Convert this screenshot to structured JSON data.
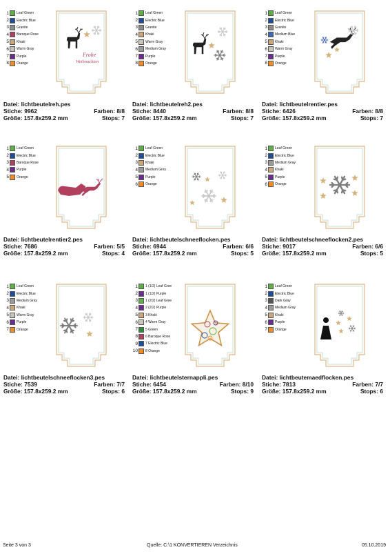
{
  "labels": {
    "datei": "Datei:",
    "stiche": "Stiche:",
    "farben": "Farben:",
    "groesse": "Größe:",
    "stops": "Stops:"
  },
  "designs": [
    {
      "file": "lichtbeutelreh.pes",
      "stiche": "9962",
      "farben": "8/8",
      "groesse": "157.8x259.2 mm",
      "stops": "7",
      "motif": "reh",
      "colors": [
        {
          "n": "1",
          "name": "Leaf Green",
          "hex": "#5fae47"
        },
        {
          "n": "2",
          "name": "Electric Blue",
          "hex": "#1f4d9a"
        },
        {
          "n": "3",
          "name": "Granite",
          "hex": "#8a8a8a"
        },
        {
          "n": "4",
          "name": "Baroque Rose",
          "hex": "#b0405e"
        },
        {
          "n": "5",
          "name": "Khaki",
          "hex": "#c9a77a"
        },
        {
          "n": "6",
          "name": "Warm Gray",
          "hex": "#c8c3bb"
        },
        {
          "n": "7",
          "name": "Purple",
          "hex": "#6a2c8f"
        },
        {
          "n": "8",
          "name": "Orange",
          "hex": "#f08c28"
        }
      ]
    },
    {
      "file": "lichtbeutelreh2.pes",
      "stiche": "8440",
      "farben": "8/8",
      "groesse": "157.8x259.2 mm",
      "stops": "7",
      "motif": "reh2",
      "colors": [
        {
          "n": "1",
          "name": "Leaf Green",
          "hex": "#5fae47"
        },
        {
          "n": "2",
          "name": "Electric Blue",
          "hex": "#1f4d9a"
        },
        {
          "n": "3",
          "name": "Granite",
          "hex": "#8a8a8a"
        },
        {
          "n": "4",
          "name": "Khaki",
          "hex": "#c9a77a"
        },
        {
          "n": "5",
          "name": "Warm Gray",
          "hex": "#c8c3bb"
        },
        {
          "n": "6",
          "name": "Medium Gray",
          "hex": "#9a9a9a"
        },
        {
          "n": "7",
          "name": "Purple",
          "hex": "#6a2c8f"
        },
        {
          "n": "8",
          "name": "Orange",
          "hex": "#f08c28"
        }
      ]
    },
    {
      "file": "lichtbeutelrentier.pes",
      "stiche": "6426",
      "farben": "8/8",
      "groesse": "157.8x259.2 mm",
      "stops": "7",
      "motif": "rentier",
      "colors": [
        {
          "n": "1",
          "name": "Leaf Green",
          "hex": "#5fae47"
        },
        {
          "n": "2",
          "name": "Electric Blue",
          "hex": "#1f4d9a"
        },
        {
          "n": "3",
          "name": "Granite",
          "hex": "#8a8a8a"
        },
        {
          "n": "4",
          "name": "Medium Blue",
          "hex": "#3e66b5"
        },
        {
          "n": "5",
          "name": "Khaki",
          "hex": "#c9a77a"
        },
        {
          "n": "6",
          "name": "Warm Gray",
          "hex": "#c8c3bb"
        },
        {
          "n": "7",
          "name": "Purple",
          "hex": "#6a2c8f"
        },
        {
          "n": "8",
          "name": "Orange",
          "hex": "#f08c28"
        }
      ]
    },
    {
      "file": "lichtbeutelrentier2.pes",
      "stiche": "7686",
      "farben": "5/5",
      "groesse": "157.8x259.2 mm",
      "stops": "4",
      "motif": "schlitten",
      "colors": [
        {
          "n": "1",
          "name": "Leaf Green",
          "hex": "#5fae47"
        },
        {
          "n": "2",
          "name": "Electric Blue",
          "hex": "#1f4d9a"
        },
        {
          "n": "3",
          "name": "Baroque Rose",
          "hex": "#b0405e"
        },
        {
          "n": "4",
          "name": "Purple",
          "hex": "#6a2c8f"
        },
        {
          "n": "5",
          "name": "Orange",
          "hex": "#f08c28"
        }
      ]
    },
    {
      "file": "lichtbeutelschneeflocken.pes",
      "stiche": "6944",
      "farben": "6/6",
      "groesse": "157.8x259.2 mm",
      "stops": "5",
      "motif": "flocken",
      "colors": [
        {
          "n": "1",
          "name": "Leaf Green",
          "hex": "#5fae47"
        },
        {
          "n": "2",
          "name": "Electric Blue",
          "hex": "#1f4d9a"
        },
        {
          "n": "3",
          "name": "Khaki",
          "hex": "#c9a77a"
        },
        {
          "n": "4",
          "name": "Medium Grey",
          "hex": "#9a9a9a"
        },
        {
          "n": "5",
          "name": "Purple",
          "hex": "#6a2c8f"
        },
        {
          "n": "6",
          "name": "Orange",
          "hex": "#f08c28"
        }
      ]
    },
    {
      "file": "lichtbeutelschneeflocken2.pes",
      "stiche": "9017",
      "farben": "6/6",
      "groesse": "157.8x259.2 mm",
      "stops": "5",
      "motif": "flocken2",
      "colors": [
        {
          "n": "1",
          "name": "Leaf Green",
          "hex": "#5fae47"
        },
        {
          "n": "2",
          "name": "Electric Blue",
          "hex": "#1f4d9a"
        },
        {
          "n": "3",
          "name": "Medium Gray",
          "hex": "#9a9a9a"
        },
        {
          "n": "4",
          "name": "Khaki",
          "hex": "#c9a77a"
        },
        {
          "n": "5",
          "name": "Purple",
          "hex": "#6a2c8f"
        },
        {
          "n": "6",
          "name": "Orange",
          "hex": "#f08c28"
        }
      ]
    },
    {
      "file": "lichtbeutelschneeflocken3.pes",
      "stiche": "7539",
      "farben": "7/7",
      "groesse": "157.8x259.2 mm",
      "stops": "6",
      "motif": "flocken3",
      "colors": [
        {
          "n": "1",
          "name": "Leaf Green",
          "hex": "#5fae47"
        },
        {
          "n": "2",
          "name": "Electric Blue",
          "hex": "#1f4d9a"
        },
        {
          "n": "3",
          "name": "Medium Gray",
          "hex": "#9a9a9a"
        },
        {
          "n": "4",
          "name": "Khaki",
          "hex": "#c9a77a"
        },
        {
          "n": "5",
          "name": "Warm Gray",
          "hex": "#c8c3bb"
        },
        {
          "n": "6",
          "name": "Purple",
          "hex": "#6a2c8f"
        },
        {
          "n": "7",
          "name": "Orange",
          "hex": "#f08c28"
        }
      ]
    },
    {
      "file": "lichtbeutelsternappli.pes",
      "stiche": "6454",
      "farben": "8/10",
      "groesse": "157.8x259.2 mm",
      "stops": "9",
      "motif": "stern",
      "colors": [
        {
          "n": "1",
          "name": "1 (1/2) Leaf Gree",
          "hex": "#5fae47"
        },
        {
          "n": "2",
          "name": "1 (1/2) Purple",
          "hex": "#6a2c8f"
        },
        {
          "n": "3",
          "name": "1 (2/2) Leaf Gree",
          "hex": "#5fae47"
        },
        {
          "n": "4",
          "name": "2 (2/2) Purple",
          "hex": "#6a2c8f"
        },
        {
          "n": "5",
          "name": "3 Khaki",
          "hex": "#c9a77a"
        },
        {
          "n": "6",
          "name": "4 Warm Gray",
          "hex": "#c8c3bb"
        },
        {
          "n": "7",
          "name": "5 Green",
          "hex": "#2e8b3a"
        },
        {
          "n": "8",
          "name": "6 Baroque Rose",
          "hex": "#b0405e"
        },
        {
          "n": "9",
          "name": "7 Electric Blue",
          "hex": "#1f4d9a"
        },
        {
          "n": "10",
          "name": "8 Orange",
          "hex": "#f08c28"
        }
      ]
    },
    {
      "file": "lichtbeutemaedflocken.pes",
      "stiche": "7813",
      "farben": "7/7",
      "groesse": "157.8x259.2 mm",
      "stops": "6",
      "motif": "maedchen",
      "colors": [
        {
          "n": "1",
          "name": "Leaf Green",
          "hex": "#5fae47"
        },
        {
          "n": "2",
          "name": "Electric Blue",
          "hex": "#1f4d9a"
        },
        {
          "n": "3",
          "name": "Dark Gray",
          "hex": "#555555"
        },
        {
          "n": "4",
          "name": "Medium Gray",
          "hex": "#9a9a9a"
        },
        {
          "n": "5",
          "name": "Khaki",
          "hex": "#c9a77a"
        },
        {
          "n": "6",
          "name": "Purple",
          "hex": "#6a2c8f"
        },
        {
          "n": "7",
          "name": "Orange",
          "hex": "#f08c28"
        }
      ]
    }
  ],
  "frohe": [
    "Frohe",
    "Weihnachten"
  ],
  "footer": {
    "page": "Seite 3 von 3",
    "source": "Quelle:  C:\\1 KONVERTIEREN Verzeichnis",
    "date": "05.10.2019"
  }
}
